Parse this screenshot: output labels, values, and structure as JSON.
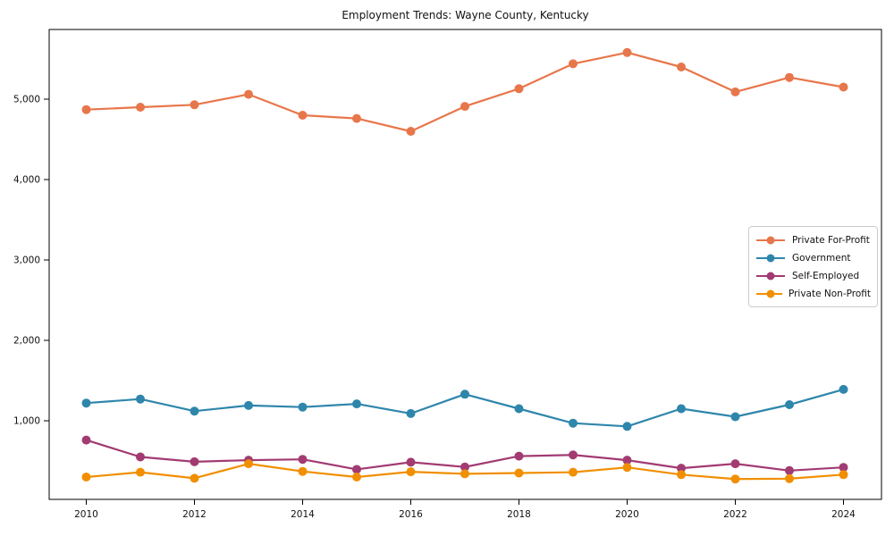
{
  "chart_data": {
    "type": "line",
    "title": "Employment Trends: Wayne County, Kentucky",
    "xlabel": "",
    "ylabel": "",
    "grid": false,
    "legend_position": "center-right",
    "ylim": [
      0,
      5850
    ],
    "x": [
      2010,
      2011,
      2012,
      2013,
      2014,
      2015,
      2016,
      2017,
      2018,
      2019,
      2020,
      2021,
      2022,
      2023,
      2024
    ],
    "series": [
      {
        "name": "Private For-Profit",
        "color": "#E8764B",
        "values": [
          4870,
          4900,
          4930,
          5060,
          4800,
          4760,
          4600,
          4910,
          5130,
          5440,
          5580,
          5400,
          5090,
          5270,
          5150
        ]
      },
      {
        "name": "Government",
        "color": "#2E86AB",
        "values": [
          1220,
          1270,
          1120,
          1190,
          1170,
          1210,
          1090,
          1330,
          1150,
          970,
          930,
          1150,
          1050,
          1200,
          1390
        ]
      },
      {
        "name": "Self-Employed",
        "color": "#A23B72",
        "values": [
          760,
          550,
          490,
          510,
          520,
          395,
          485,
          425,
          560,
          575,
          510,
          410,
          465,
          380,
          420
        ]
      },
      {
        "name": "Private Non-Profit",
        "color": "#F18F01",
        "values": [
          300,
          360,
          285,
          465,
          370,
          300,
          365,
          340,
          350,
          360,
          420,
          330,
          275,
          280,
          330
        ]
      }
    ],
    "x_ticks": [
      {
        "value": 2010,
        "label": "2010"
      },
      {
        "value": 2012,
        "label": "2012"
      },
      {
        "value": 2014,
        "label": "2014"
      },
      {
        "value": 2016,
        "label": "2016"
      },
      {
        "value": 2018,
        "label": "2018"
      },
      {
        "value": 2020,
        "label": "2020"
      },
      {
        "value": 2022,
        "label": "2022"
      },
      {
        "value": 2024,
        "label": "2024"
      }
    ],
    "y_ticks": [
      {
        "value": 1000,
        "label": "1,000"
      },
      {
        "value": 2000,
        "label": "2,000"
      },
      {
        "value": 3000,
        "label": "3,000"
      },
      {
        "value": 4000,
        "label": "4,000"
      },
      {
        "value": 5000,
        "label": "5,000"
      }
    ]
  }
}
